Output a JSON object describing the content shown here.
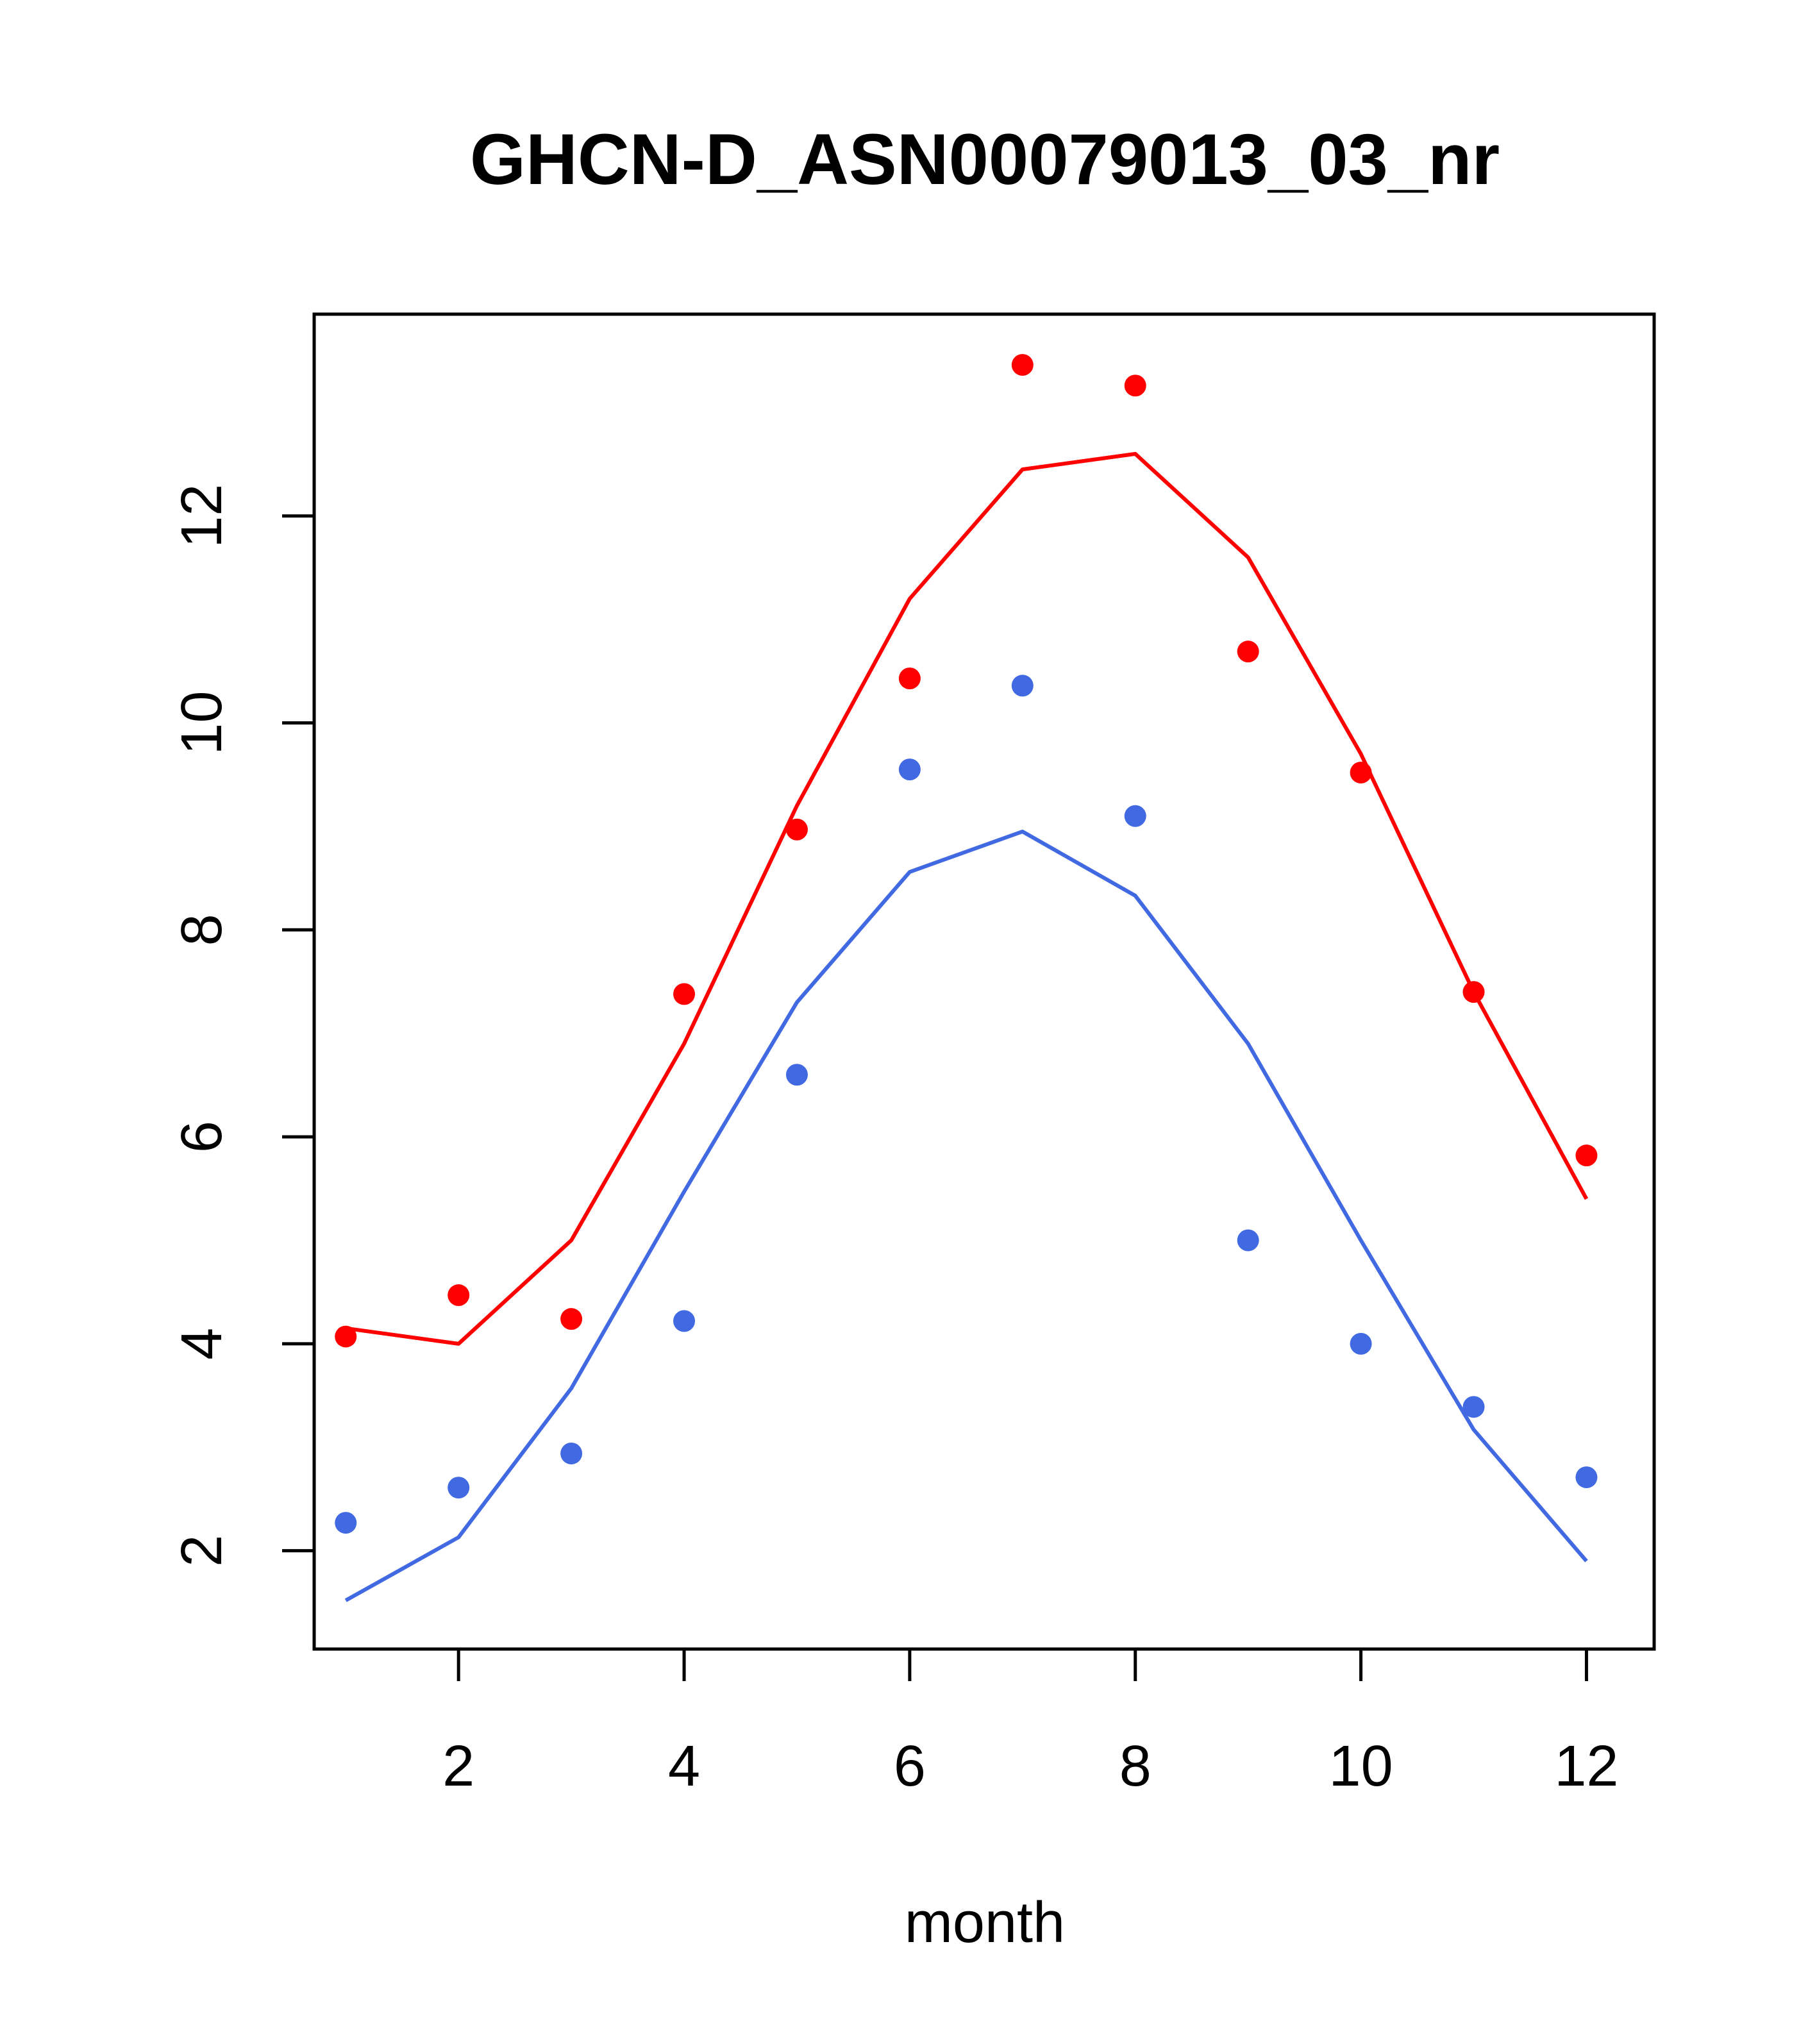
{
  "chart_data": {
    "type": "line",
    "title": "GHCN-D_ASN00079013_03_nr",
    "xlabel": "month",
    "ylabel": "",
    "xlim": [
      0.72,
      12.6
    ],
    "ylim": [
      1.05,
      13.95
    ],
    "grid": false,
    "x": [
      1,
      2,
      3,
      4,
      5,
      6,
      7,
      8,
      9,
      10,
      11,
      12
    ],
    "x_ticks": [
      2,
      4,
      6,
      8,
      10,
      12
    ],
    "y_ticks": [
      2,
      4,
      6,
      8,
      10,
      12
    ],
    "series": [
      {
        "mark": "line",
        "color": "#ff0000",
        "values": [
          4.15,
          4.0,
          5.0,
          6.9,
          9.2,
          11.2,
          12.45,
          12.6,
          11.6,
          9.7,
          7.4,
          5.4
        ]
      },
      {
        "mark": "points",
        "color": "#ff0000",
        "values": [
          4.07,
          4.47,
          4.24,
          7.38,
          8.97,
          10.43,
          13.46,
          13.26,
          10.69,
          9.52,
          7.4,
          5.82
        ]
      },
      {
        "mark": "line",
        "color": "#4169e1",
        "values": [
          1.52,
          2.13,
          3.57,
          5.47,
          7.3,
          8.56,
          8.95,
          8.33,
          6.9,
          5.0,
          3.17,
          1.9
        ]
      },
      {
        "mark": "points",
        "color": "#4169e1",
        "values": [
          2.27,
          2.61,
          2.94,
          4.22,
          6.6,
          9.55,
          10.36,
          9.1,
          5.0,
          4.0,
          3.39,
          2.71
        ]
      }
    ]
  }
}
